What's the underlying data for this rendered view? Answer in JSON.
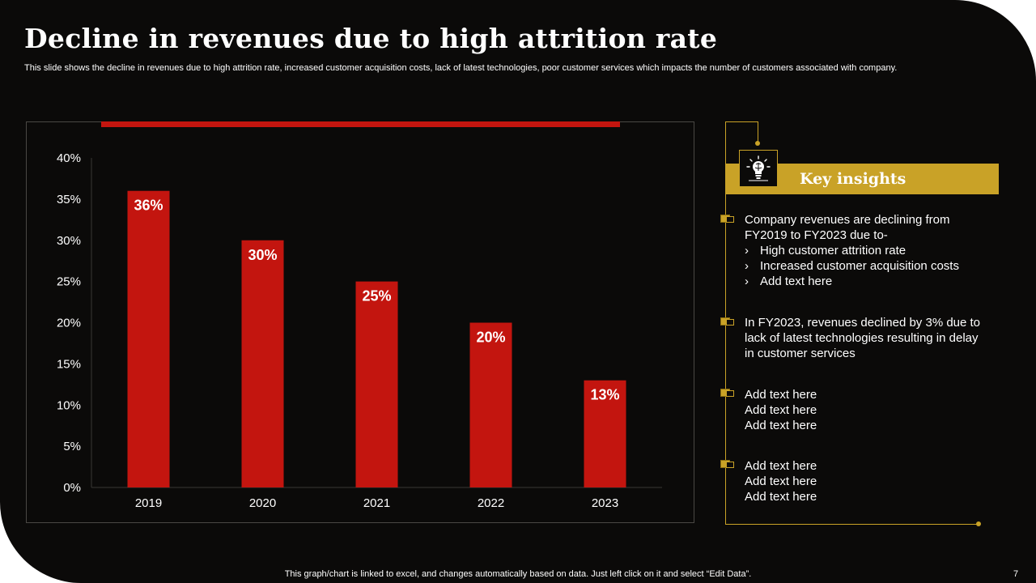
{
  "slide": {
    "title": "Decline in revenues due to high attrition rate",
    "subtitle": "This slide shows the decline in revenues due to high attrition rate,  increased customer acquisition costs, lack of latest technologies, poor customer services which impacts the number of customers associated with company.",
    "footer_note": "This graph/chart is linked to excel,  and changes automatically based on data. Just left click on it and select “Edit Data”.",
    "page_number": "7"
  },
  "colors": {
    "background": "#0b0a09",
    "bar": "#c3150f",
    "accent_gold": "#c9a227",
    "text": "#ffffff"
  },
  "chart_data": {
    "type": "bar",
    "categories": [
      "2019",
      "2020",
      "2021",
      "2022",
      "2023"
    ],
    "values": [
      36,
      30,
      25,
      20,
      13
    ],
    "data_labels": [
      "36%",
      "30%",
      "25%",
      "20%",
      "13%"
    ],
    "ylim": [
      0,
      40
    ],
    "yticks": [
      0,
      5,
      10,
      15,
      20,
      25,
      30,
      35,
      40
    ],
    "ytick_labels": [
      "0%",
      "5%",
      "10%",
      "15%",
      "20%",
      "25%",
      "30%",
      "35%",
      "40%"
    ],
    "grid": false,
    "legend": "none"
  },
  "insights": {
    "title": "Key insights",
    "icon": "brain-lightbulb-icon",
    "items": [
      {
        "lines": [
          "Company revenues are declining from",
          "FY2019 to FY2023 due to-"
        ],
        "sub": [
          "High customer attrition rate",
          "Increased customer acquisition costs",
          "Add text here"
        ]
      },
      {
        "lines": [
          "In FY2023, revenues declined by 3% due to",
          "lack of latest technologies resulting in delay",
          "in customer services"
        ],
        "sub": []
      },
      {
        "lines": [
          "Add text here",
          "Add text here",
          "Add text here"
        ],
        "sub": []
      },
      {
        "lines": [
          "Add text here",
          "Add text here",
          "Add text here"
        ],
        "sub": []
      }
    ],
    "sub_marker": "›"
  }
}
